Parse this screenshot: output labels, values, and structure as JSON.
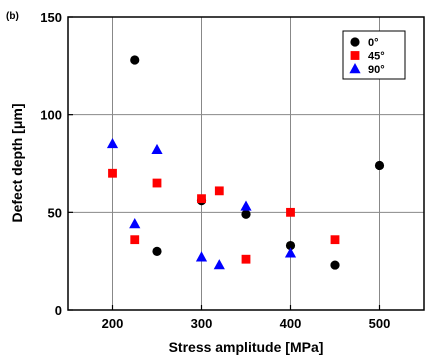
{
  "chart_data": {
    "type": "scatter",
    "panel_label": "(b)",
    "xlabel": "Stress amplitude [MPa]",
    "ylabel": "Defect depth [μm]",
    "xlim": [
      150,
      550
    ],
    "ylim": [
      0,
      150
    ],
    "xticks": [
      200,
      300,
      400,
      500
    ],
    "yticks": [
      0,
      50,
      100,
      150
    ],
    "grid": true,
    "legend_position": "top-right",
    "series": [
      {
        "name": "0°",
        "marker": "circle",
        "color": "#000000",
        "points": [
          [
            225,
            128
          ],
          [
            250,
            30
          ],
          [
            300,
            56
          ],
          [
            350,
            49
          ],
          [
            400,
            33
          ],
          [
            450,
            23
          ],
          [
            500,
            74
          ]
        ]
      },
      {
        "name": "45°",
        "marker": "square",
        "color": "#ff0000",
        "points": [
          [
            200,
            70
          ],
          [
            225,
            36
          ],
          [
            250,
            65
          ],
          [
            300,
            57
          ],
          [
            320,
            61
          ],
          [
            350,
            26
          ],
          [
            400,
            50
          ],
          [
            450,
            36
          ]
        ]
      },
      {
        "name": "90°",
        "marker": "triangle",
        "color": "#0000ff",
        "points": [
          [
            200,
            85
          ],
          [
            225,
            44
          ],
          [
            250,
            82
          ],
          [
            300,
            27
          ],
          [
            320,
            23
          ],
          [
            350,
            53
          ],
          [
            400,
            29
          ]
        ]
      }
    ]
  }
}
